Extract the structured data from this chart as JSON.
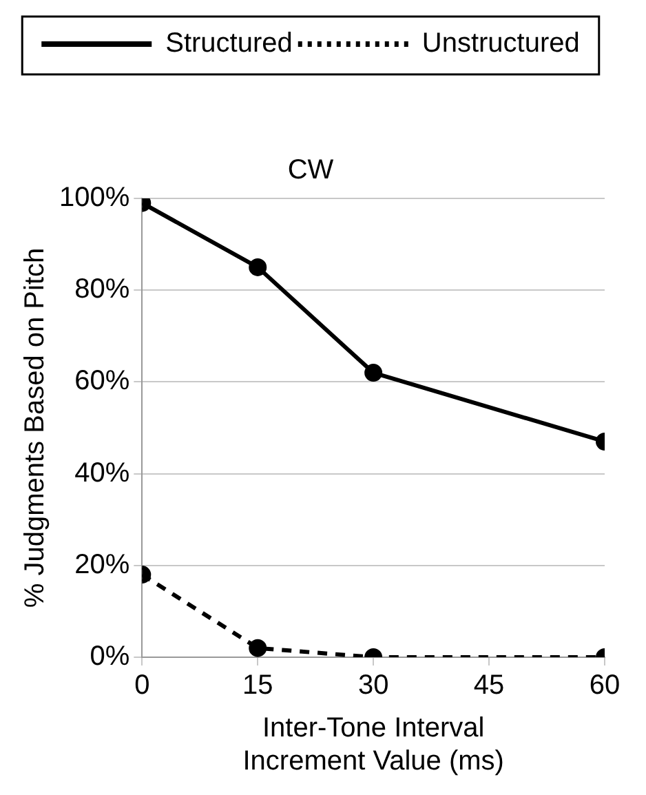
{
  "chart_data": {
    "type": "line",
    "title": "CW",
    "xlabel": "Inter-Tone Interval\nIncrement Value (ms)",
    "ylabel": "% Judgments Based on Pitch",
    "series": [
      {
        "name": "Structured",
        "color": "#000000",
        "x": [
          0,
          15,
          30,
          60
        ],
        "values": [
          99,
          85,
          62,
          47
        ],
        "line_style": "solid"
      },
      {
        "name": "Unstructured",
        "color": "#000000",
        "x": [
          0,
          15,
          30,
          60
        ],
        "values": [
          18,
          2,
          0,
          0
        ],
        "line_style": "dashed"
      }
    ],
    "xlim": [
      0,
      60
    ],
    "xticks": [
      0,
      15,
      30,
      45,
      60
    ],
    "ylim": [
      0,
      100
    ],
    "yticks": [
      {
        "value": 0,
        "label": "0%"
      },
      {
        "value": 20,
        "label": "20%"
      },
      {
        "value": 40,
        "label": "40%"
      },
      {
        "value": 60,
        "label": "60%"
      },
      {
        "value": 80,
        "label": "80%"
      },
      {
        "value": 100,
        "label": "100%"
      }
    ],
    "grid": "y",
    "legend": "top",
    "marker": "circle"
  }
}
